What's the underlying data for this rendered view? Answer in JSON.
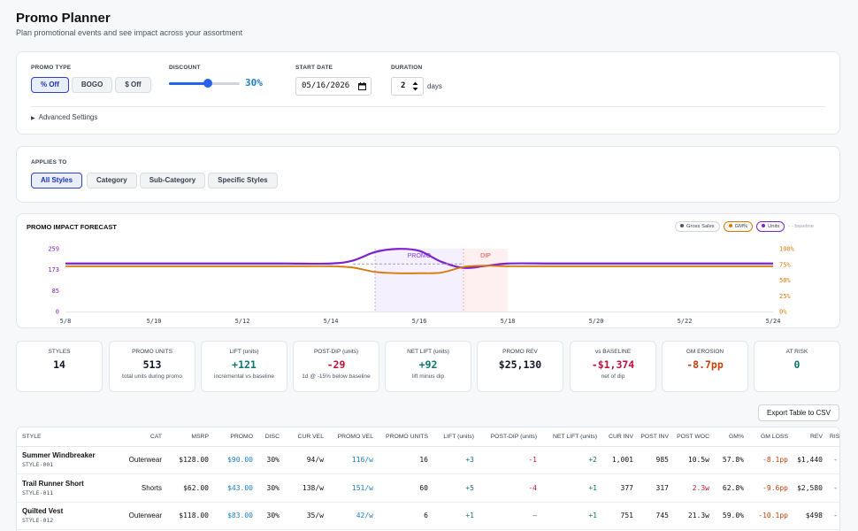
{
  "header": {
    "title": "Promo Planner",
    "subtitle": "Plan promotional events and see impact across your assortment"
  },
  "settings": {
    "promo_type_label": "PROMO TYPE",
    "promo_types": [
      "% Off",
      "BOGO",
      "$ Off"
    ],
    "promo_type_selected": "% Off",
    "discount_label": "DISCOUNT",
    "discount_value": "30%",
    "discount_fraction": 0.55,
    "start_date_label": "START DATE",
    "start_date": "05/16/2026",
    "calendar_icon": "calendar-icon",
    "duration_label": "DURATION",
    "duration_value": "2",
    "duration_unit": "days",
    "advanced_label": "Advanced Settings"
  },
  "applies": {
    "label": "APPLIES TO",
    "options": [
      "All Styles",
      "Category",
      "Sub-Category",
      "Specific Styles"
    ],
    "selected": "All Styles"
  },
  "chart_data": {
    "type": "line",
    "title": "PROMO IMPACT FORECAST",
    "x_tick_labels": [
      "5/8",
      "5/10",
      "5/12",
      "5/14",
      "5/16",
      "5/18",
      "5/20",
      "5/22",
      "5/24"
    ],
    "y_left_ticks": [
      "0",
      "85",
      "173",
      "259"
    ],
    "y_right_ticks": [
      "0%",
      "25%",
      "50%",
      "75%",
      "100%"
    ],
    "ylim_left": [
      0,
      259
    ],
    "ylim_right": [
      0,
      100
    ],
    "legend": [
      "Gross Sales",
      "GM%",
      "Units",
      "baseline"
    ],
    "bands": [
      {
        "label": "PROMO",
        "from": "5/15",
        "to": "5/17",
        "color": "#7c3aed"
      },
      {
        "label": "DIP",
        "from": "5/17",
        "to": "5/18",
        "color": "#ef4444"
      }
    ],
    "series": [
      {
        "name": "Units",
        "color": "#7e22ce",
        "axis": "left",
        "x": [
          8,
          9,
          10,
          11,
          12,
          13,
          14,
          14.5,
          15,
          15.5,
          16,
          16.5,
          17,
          17.5,
          18,
          19,
          20,
          21,
          22,
          23,
          24
        ],
        "values": [
          198,
          198,
          198,
          198,
          198,
          198,
          198,
          210,
          245,
          258,
          250,
          205,
          180,
          188,
          198,
          198,
          198,
          198,
          198,
          198,
          198
        ]
      },
      {
        "name": "GM%",
        "color": "#d97706",
        "axis": "right",
        "x": [
          8,
          9,
          10,
          11,
          12,
          13,
          14,
          14.5,
          15,
          15.5,
          16,
          16.5,
          17,
          17.5,
          18,
          19,
          20,
          21,
          22,
          23,
          24
        ],
        "values": [
          72,
          72,
          72,
          72,
          72,
          72,
          72,
          70,
          63,
          61,
          61,
          62,
          71,
          73,
          72,
          72,
          72,
          72,
          72,
          72,
          72
        ]
      },
      {
        "name": "baseline",
        "color": "#9ca3af",
        "axis": "left",
        "x": [
          14.5,
          17
        ],
        "values": [
          196,
          196
        ]
      }
    ],
    "colors": {
      "gross_sales": "#4b5563",
      "gm": "#d97706",
      "units": "#7e22ce",
      "baseline": "#9ca3af"
    }
  },
  "kpis": [
    {
      "label": "STYLES",
      "value": "14",
      "sub": "",
      "color": "#111827"
    },
    {
      "label": "PROMO UNITS",
      "value": "513",
      "sub": "total units during promo",
      "color": "#111827"
    },
    {
      "label": "LIFT (units)",
      "value": "+121",
      "sub": "incremental vs baseline",
      "color": "#0f766e"
    },
    {
      "label": "POST-DIP (units)",
      "value": "-29",
      "sub": "1d @ -15% below baseline",
      "color": "#be123c"
    },
    {
      "label": "NET LIFT (units)",
      "value": "+92",
      "sub": "lift minus dip",
      "color": "#0f766e"
    },
    {
      "label": "PROMO REV",
      "value": "$25,130",
      "sub": "",
      "color": "#111827"
    },
    {
      "label": "vs BASELINE",
      "value": "-$1,374",
      "sub": "net of dip",
      "color": "#be123c"
    },
    {
      "label": "GM EROSION",
      "value": "-8.7pp",
      "sub": "",
      "color": "#c2410c"
    },
    {
      "label": "AT RISK",
      "value": "0",
      "sub": "",
      "color": "#0f766e"
    }
  ],
  "export_label": "Export Table to CSV",
  "table": {
    "columns": [
      "STYLE",
      "CAT",
      "MSRP",
      "PROMO",
      "DISC",
      "CUR VEL",
      "PROMO VEL",
      "PROMO UNITS",
      "LIFT (units)",
      "POST-DIP (units)",
      "NET LIFT (units)",
      "CUR INV",
      "POST INV",
      "POST WOC",
      "GM%",
      "GM LOSS",
      "REV",
      "RISK"
    ],
    "rows": [
      {
        "name": "Summer Windbreaker",
        "code": "STYLE-001",
        "cat": "Outerwear",
        "msrp": "$128.00",
        "promo": "$90.00",
        "disc": "30%",
        "cur_vel": "94/w",
        "promo_vel": "116/w",
        "promo_units": "16",
        "lift": "+3",
        "post_dip": "-1",
        "net_lift": "+2",
        "cur_inv": "1,001",
        "post_inv": "985",
        "post_woc": "10.5w",
        "gm": "57.8%",
        "gm_loss": "-8.1pp",
        "rev": "$1,440",
        "risk": "-"
      },
      {
        "name": "Trail Runner Short",
        "code": "STYLE-011",
        "cat": "Shorts",
        "msrp": "$62.00",
        "promo": "$43.00",
        "disc": "30%",
        "cur_vel": "138/w",
        "promo_vel": "151/w",
        "promo_units": "60",
        "lift": "+5",
        "post_dip": "-4",
        "net_lift": "+1",
        "cur_inv": "377",
        "post_inv": "317",
        "post_woc": "2.3w",
        "gm": "62.8%",
        "gm_loss": "-9.6pp",
        "rev": "$2,580",
        "risk": "-"
      },
      {
        "name": "Quilted Vest",
        "code": "STYLE-012",
        "cat": "Outerwear",
        "msrp": "$118.00",
        "promo": "$83.00",
        "disc": "30%",
        "cur_vel": "35/w",
        "promo_vel": "42/w",
        "promo_units": "6",
        "lift": "+1",
        "post_dip": "—",
        "net_lift": "+1",
        "cur_inv": "751",
        "post_inv": "745",
        "post_woc": "21.3w",
        "gm": "59.0%",
        "gm_loss": "-10.1pp",
        "rev": "$498",
        "risk": "-"
      }
    ]
  }
}
